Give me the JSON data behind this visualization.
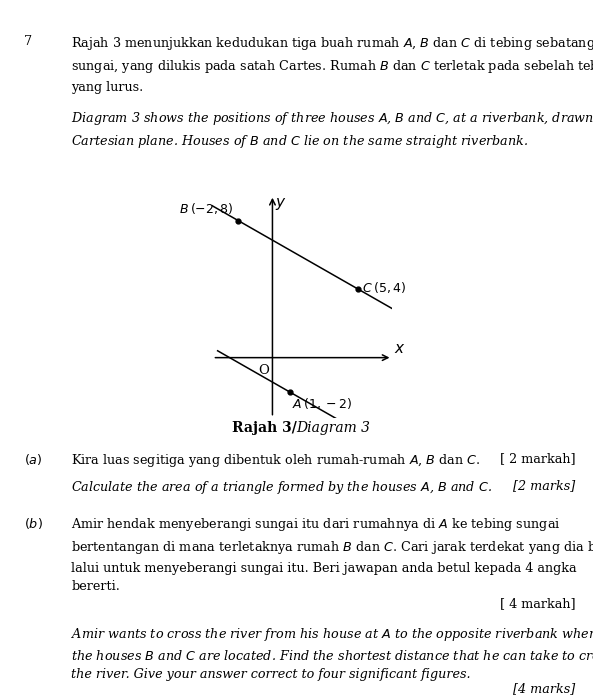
{
  "page_background": "#ffffff",
  "header_background": "#e8e8e8",
  "question_number": "7",
  "points": {
    "A": [
      1,
      -2
    ],
    "B": [
      -2,
      8
    ],
    "C": [
      5,
      4
    ]
  },
  "axis_xlim": [
    -3.5,
    7.0
  ],
  "axis_ylim": [
    -3.5,
    9.5
  ],
  "diagram_label_bold": "Rajah 3/",
  "diagram_label_italic": "Diagram 3",
  "font_size": 9.2,
  "text_color": "#000000"
}
